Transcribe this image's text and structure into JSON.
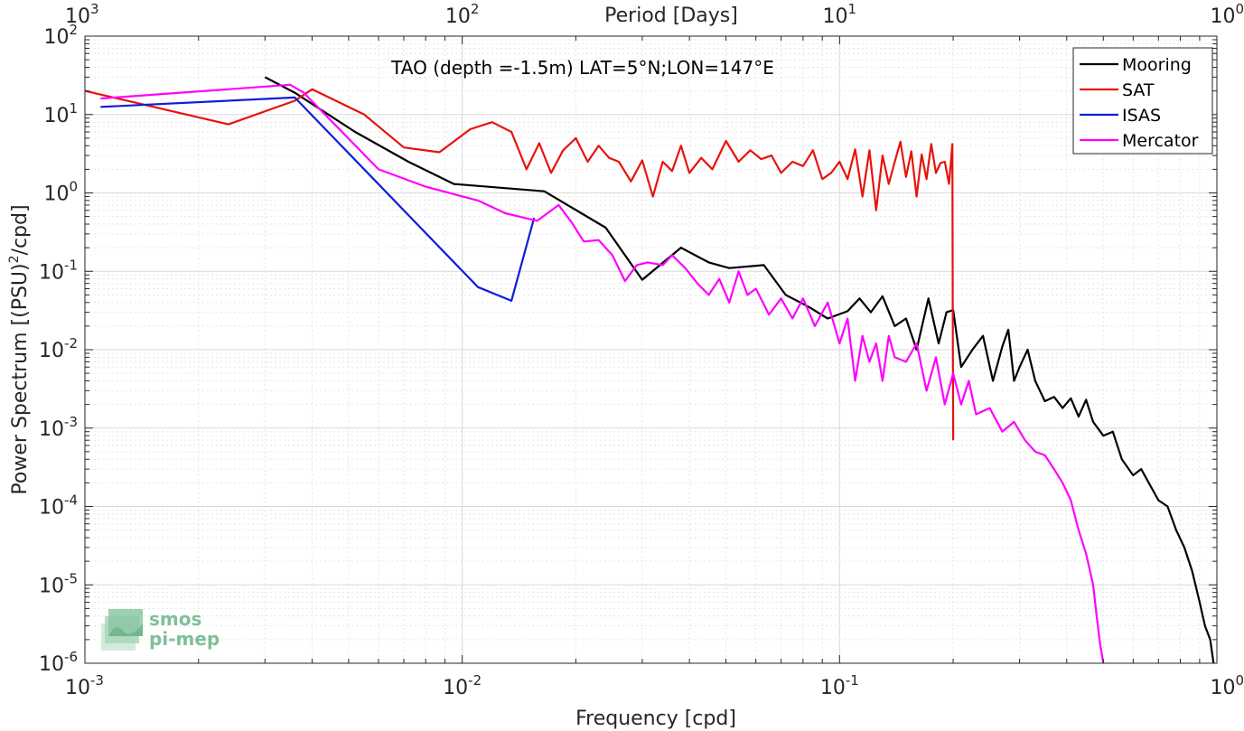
{
  "chart_data": {
    "type": "line",
    "title": "TAO (depth =-1.5m) LAT=5°N;LON=147°E",
    "xlabel": "Frequency [cpd]",
    "x2label": "Period [Days]",
    "ylabel_main": "Power Spectrum [(PSU)",
    "ylabel_sup": "2",
    "ylabel_tail": "/cpd]",
    "x_scale": "log",
    "y_scale": "log",
    "xlim": [
      0.001,
      1
    ],
    "ylim": [
      1e-06,
      100
    ],
    "grid": true,
    "legend_position": "top-right",
    "x_ticks": [
      {
        "value": 0.001,
        "base": "10",
        "exp": "-3"
      },
      {
        "value": 0.01,
        "base": "10",
        "exp": "-2"
      },
      {
        "value": 0.1,
        "base": "10",
        "exp": "-1"
      },
      {
        "value": 1,
        "base": "10",
        "exp": "0"
      }
    ],
    "x2_ticks": [
      {
        "value": 0.001,
        "base": "10",
        "exp": "3"
      },
      {
        "value": 0.01,
        "base": "10",
        "exp": "2"
      },
      {
        "value": 0.1,
        "base": "10",
        "exp": "1"
      },
      {
        "value": 1,
        "base": "10",
        "exp": "0"
      }
    ],
    "y_ticks": [
      {
        "value": 100,
        "base": "10",
        "exp": "2"
      },
      {
        "value": 10,
        "base": "10",
        "exp": "1"
      },
      {
        "value": 1,
        "base": "10",
        "exp": "0"
      },
      {
        "value": 0.1,
        "base": "10",
        "exp": "-1"
      },
      {
        "value": 0.01,
        "base": "10",
        "exp": "-2"
      },
      {
        "value": 0.001,
        "base": "10",
        "exp": "-3"
      },
      {
        "value": 0.0001,
        "base": "10",
        "exp": "-4"
      },
      {
        "value": 1e-05,
        "base": "10",
        "exp": "-5"
      },
      {
        "value": 1e-06,
        "base": "10",
        "exp": "-6"
      }
    ],
    "series": [
      {
        "name": "Mooring",
        "color": "#000000",
        "x": [
          0.003,
          0.0036,
          0.0052,
          0.0072,
          0.0095,
          0.0165,
          0.024,
          0.03,
          0.038,
          0.045,
          0.051,
          0.063,
          0.072,
          0.083,
          0.093,
          0.105,
          0.113,
          0.121,
          0.13,
          0.14,
          0.15,
          0.16,
          0.172,
          0.183,
          0.192,
          0.2,
          0.21,
          0.225,
          0.24,
          0.255,
          0.27,
          0.28,
          0.29,
          0.3,
          0.315,
          0.33,
          0.35,
          0.37,
          0.39,
          0.41,
          0.43,
          0.45,
          0.47,
          0.5,
          0.53,
          0.56,
          0.6,
          0.63,
          0.66,
          0.7,
          0.74,
          0.78,
          0.82,
          0.86,
          0.9,
          0.93,
          0.96,
          0.98
        ],
        "values": [
          30,
          19,
          6,
          2.5,
          1.3,
          1.05,
          0.36,
          0.078,
          0.2,
          0.13,
          0.11,
          0.12,
          0.05,
          0.035,
          0.025,
          0.031,
          0.045,
          0.03,
          0.048,
          0.02,
          0.025,
          0.01,
          0.045,
          0.012,
          0.03,
          0.032,
          0.006,
          0.01,
          0.015,
          0.004,
          0.011,
          0.018,
          0.004,
          0.006,
          0.01,
          0.004,
          0.0022,
          0.0025,
          0.0018,
          0.0024,
          0.0014,
          0.0023,
          0.0012,
          0.0008,
          0.0009,
          0.0004,
          0.00025,
          0.0003,
          0.0002,
          0.00012,
          0.0001,
          5e-05,
          3e-05,
          1.5e-05,
          6e-06,
          3e-06,
          2e-06,
          1e-06
        ]
      },
      {
        "name": "SAT",
        "color": "#e8120c",
        "x": [
          0.001,
          0.0024,
          0.0036,
          0.004,
          0.0055,
          0.007,
          0.0087,
          0.0105,
          0.012,
          0.0135,
          0.0148,
          0.016,
          0.0172,
          0.0185,
          0.02,
          0.0215,
          0.023,
          0.0245,
          0.026,
          0.028,
          0.03,
          0.032,
          0.034,
          0.036,
          0.038,
          0.04,
          0.043,
          0.046,
          0.05,
          0.054,
          0.058,
          0.062,
          0.066,
          0.07,
          0.075,
          0.08,
          0.085,
          0.09,
          0.095,
          0.1,
          0.105,
          0.11,
          0.115,
          0.12,
          0.125,
          0.13,
          0.135,
          0.14,
          0.145,
          0.15,
          0.155,
          0.16,
          0.165,
          0.17,
          0.175,
          0.18,
          0.185,
          0.19,
          0.195,
          0.199,
          0.1995,
          0.2
        ],
        "values": [
          20,
          7.5,
          15,
          21,
          10,
          3.8,
          3.3,
          6.5,
          8,
          6,
          2,
          4.3,
          1.8,
          3.5,
          5,
          2.5,
          4,
          2.8,
          2.5,
          1.4,
          2.6,
          0.9,
          2.5,
          1.9,
          4,
          1.8,
          2.8,
          2,
          4.6,
          2.5,
          3.5,
          2.7,
          3,
          1.8,
          2.5,
          2.2,
          3.5,
          1.5,
          1.8,
          2.5,
          1.5,
          3.6,
          0.9,
          3.5,
          0.6,
          3,
          1.3,
          2.5,
          4.5,
          1.6,
          3.4,
          0.9,
          3.1,
          1.5,
          4.2,
          1.8,
          2.4,
          2.5,
          1.3,
          4.2,
          0.04,
          0.0007
        ]
      },
      {
        "name": "ISAS",
        "color": "#0e1ed8",
        "x": [
          0.0011,
          0.0036,
          0.011,
          0.0135,
          0.0155
        ],
        "values": [
          12.5,
          16.5,
          0.063,
          0.042,
          0.48
        ]
      },
      {
        "name": "Mercator",
        "color": "#ff00ff",
        "x": [
          0.0011,
          0.0035,
          0.0038,
          0.006,
          0.008,
          0.011,
          0.013,
          0.0158,
          0.018,
          0.0195,
          0.021,
          0.023,
          0.025,
          0.027,
          0.029,
          0.031,
          0.034,
          0.036,
          0.039,
          0.042,
          0.045,
          0.048,
          0.051,
          0.054,
          0.057,
          0.06,
          0.065,
          0.07,
          0.075,
          0.08,
          0.086,
          0.093,
          0.1,
          0.105,
          0.11,
          0.115,
          0.12,
          0.125,
          0.13,
          0.135,
          0.14,
          0.15,
          0.16,
          0.17,
          0.18,
          0.19,
          0.2,
          0.21,
          0.22,
          0.23,
          0.25,
          0.27,
          0.29,
          0.31,
          0.33,
          0.35,
          0.37,
          0.39,
          0.41,
          0.43,
          0.45,
          0.47,
          0.48,
          0.49,
          0.5
        ],
        "values": [
          16,
          24,
          19,
          2,
          1.2,
          0.8,
          0.55,
          0.44,
          0.7,
          0.42,
          0.24,
          0.25,
          0.16,
          0.075,
          0.12,
          0.13,
          0.12,
          0.16,
          0.11,
          0.07,
          0.05,
          0.08,
          0.04,
          0.1,
          0.05,
          0.06,
          0.028,
          0.045,
          0.025,
          0.045,
          0.02,
          0.04,
          0.012,
          0.025,
          0.004,
          0.015,
          0.007,
          0.012,
          0.004,
          0.015,
          0.008,
          0.007,
          0.012,
          0.003,
          0.008,
          0.002,
          0.005,
          0.002,
          0.004,
          0.0015,
          0.0018,
          0.0009,
          0.0012,
          0.0007,
          0.0005,
          0.00045,
          0.0003,
          0.0002,
          0.00012,
          5e-05,
          2.5e-05,
          1e-05,
          4e-06,
          1.8e-06,
          1e-06
        ]
      }
    ]
  },
  "logo": {
    "line1": "smos",
    "line2": "pi-mep",
    "color": "#7fbf9a"
  }
}
